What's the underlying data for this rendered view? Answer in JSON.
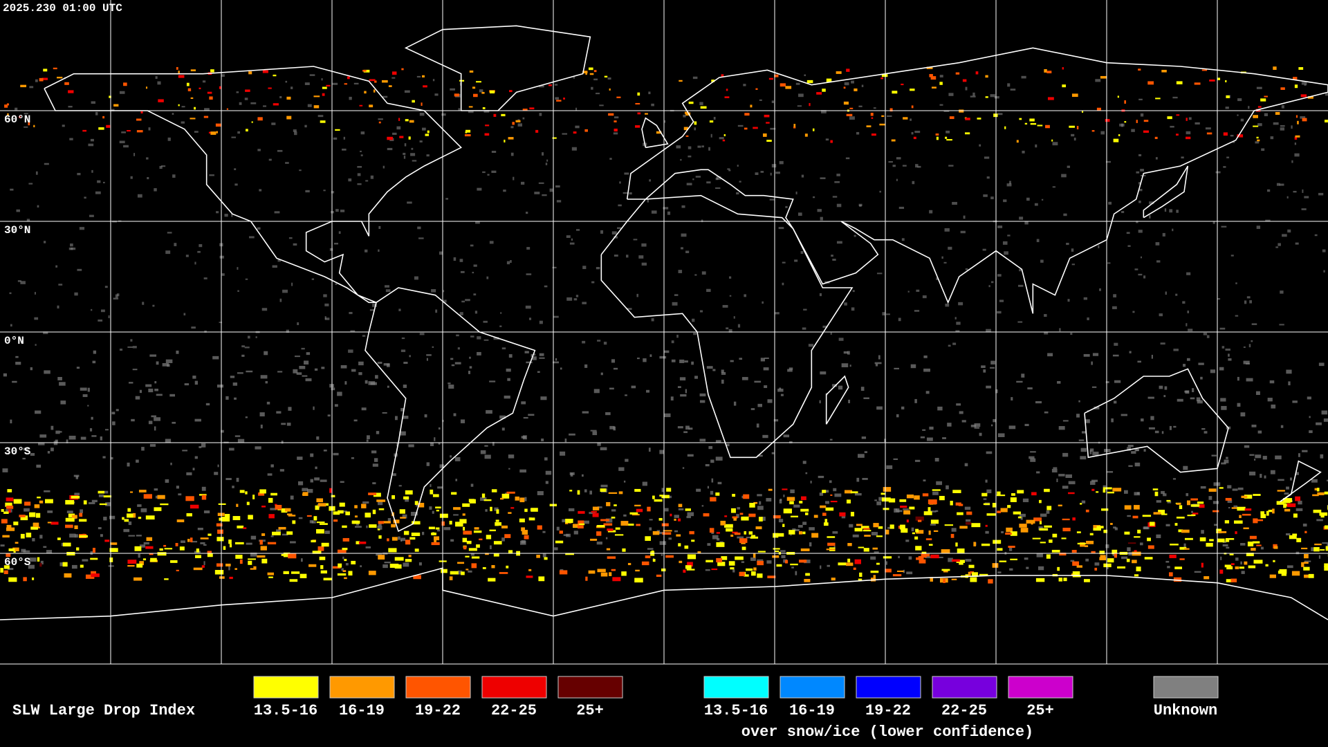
{
  "header": {
    "timestamp": "2025.230 01:00 UTC"
  },
  "map": {
    "latitude_labels": [
      "60°N",
      "30°N",
      "0°N",
      "30°S",
      "60°S"
    ]
  },
  "legend": {
    "title": "SLW Large Drop Index",
    "items": [
      {
        "label": "13.5-16",
        "color": "#ffff00"
      },
      {
        "label": "16-19",
        "color": "#ff9900"
      },
      {
        "label": "19-22",
        "color": "#ff5500"
      },
      {
        "label": "22-25",
        "color": "#ee0000"
      },
      {
        "label": "25+",
        "color": "#660000"
      }
    ],
    "snow_ice_items": [
      {
        "label": "13.5-16",
        "color": "#00ffff"
      },
      {
        "label": "16-19",
        "color": "#0088ff"
      },
      {
        "label": "19-22",
        "color": "#0000ff"
      },
      {
        "label": "22-25",
        "color": "#7700dd"
      },
      {
        "label": "25+",
        "color": "#cc00cc"
      }
    ],
    "snow_ice_caption": "over snow/ice (lower confidence)",
    "unknown": {
      "label": "Unknown",
      "color": "#808080"
    }
  }
}
